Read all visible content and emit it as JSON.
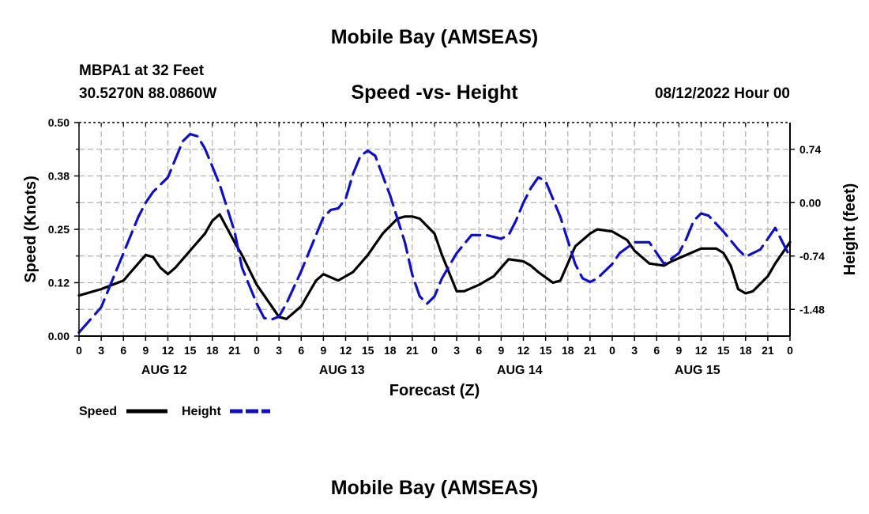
{
  "chart_data": {
    "type": "line",
    "title": "Mobile Bay (AMSEAS)",
    "footer_title": "Mobile Bay (AMSEAS)",
    "station": "MBPA1 at 32 Feet",
    "location": "30.5270N  88.0860W",
    "subtitle": "Speed -vs- Height",
    "datetime": "08/12/2022 Hour 00",
    "xlabel": "Forecast (Z)",
    "ylabel_left": "Speed (Knots)",
    "ylabel_right": "Height (feet)",
    "x_hours_range": [
      0,
      96
    ],
    "x_tick_labels": [
      "0",
      "3",
      "6",
      "9",
      "12",
      "15",
      "18",
      "21",
      "0",
      "3",
      "6",
      "9",
      "12",
      "15",
      "18",
      "21",
      "0",
      "3",
      "6",
      "9",
      "12",
      "15",
      "18",
      "21",
      "0",
      "3",
      "6",
      "9",
      "12",
      "15",
      "18",
      "21",
      "0"
    ],
    "day_labels": [
      "AUG 12",
      "AUG 13",
      "AUG 14",
      "AUG 15"
    ],
    "ylim_left": [
      0,
      0.5
    ],
    "yticks_left": [
      "0.00",
      "0.12",
      "0.25",
      "0.38",
      "0.50"
    ],
    "ylim_right": [
      -1.85,
      1.11
    ],
    "yticks_right": [
      {
        "label": "0.74",
        "value": 0.74
      },
      {
        "label": "0.00",
        "value": 0.0
      },
      {
        "label": "-0.74",
        "value": -0.74
      },
      {
        "label": "-1.48",
        "value": -1.48
      }
    ],
    "grid": true,
    "legend": [
      "Speed",
      "Height"
    ],
    "series": [
      {
        "name": "Speed",
        "axis": "left",
        "color": "#000000",
        "style": "solid",
        "x": [
          0,
          3,
          6,
          7,
          9,
          10,
          11,
          12,
          13,
          15,
          17,
          18,
          19,
          21,
          22,
          24,
          26,
          27,
          28,
          30,
          31,
          32,
          33,
          35,
          37,
          39,
          41,
          43,
          44,
          45,
          46,
          48,
          49,
          51,
          52,
          54,
          56,
          57,
          58,
          60,
          61,
          62,
          64,
          65,
          67,
          69,
          70,
          72,
          74,
          75,
          77,
          79,
          80,
          82,
          84,
          86,
          87,
          88,
          89,
          90,
          91,
          93,
          94,
          96
        ],
        "values": [
          0.095,
          0.11,
          0.13,
          0.15,
          0.19,
          0.185,
          0.16,
          0.145,
          0.16,
          0.2,
          0.24,
          0.27,
          0.285,
          0.22,
          0.19,
          0.12,
          0.07,
          0.045,
          0.04,
          0.07,
          0.1,
          0.13,
          0.145,
          0.13,
          0.15,
          0.19,
          0.24,
          0.275,
          0.28,
          0.28,
          0.275,
          0.24,
          0.19,
          0.105,
          0.105,
          0.12,
          0.14,
          0.16,
          0.18,
          0.175,
          0.165,
          0.15,
          0.125,
          0.13,
          0.21,
          0.24,
          0.25,
          0.245,
          0.225,
          0.2,
          0.17,
          0.165,
          0.175,
          0.19,
          0.205,
          0.205,
          0.195,
          0.165,
          0.11,
          0.1,
          0.105,
          0.14,
          0.17,
          0.22
        ]
      },
      {
        "name": "Height",
        "axis": "right",
        "color": "#1010c0",
        "style": "dashed",
        "x": [
          0,
          3,
          6,
          8,
          9,
          10,
          12,
          13,
          14,
          15,
          16,
          17,
          18,
          19,
          21,
          22,
          24,
          25,
          26,
          27,
          28,
          30,
          32,
          33,
          34,
          35,
          36,
          37,
          38,
          39,
          40,
          42,
          44,
          45,
          46,
          47,
          48,
          49,
          51,
          53,
          55,
          57,
          58,
          59,
          60,
          61,
          62,
          63,
          64,
          65,
          67,
          68,
          69,
          70,
          71,
          72,
          73,
          75,
          77,
          78,
          79,
          81,
          82,
          83,
          84,
          85,
          87,
          89,
          90,
          92,
          93,
          94,
          96
        ],
        "values": [
          -1.8,
          -1.45,
          -0.7,
          -0.2,
          0.0,
          0.15,
          0.35,
          0.6,
          0.85,
          0.95,
          0.92,
          0.75,
          0.5,
          0.25,
          -0.4,
          -0.9,
          -1.4,
          -1.6,
          -1.62,
          -1.58,
          -1.4,
          -0.95,
          -0.45,
          -0.2,
          -0.1,
          -0.08,
          0.05,
          0.4,
          0.65,
          0.72,
          0.65,
          0.1,
          -0.55,
          -1.0,
          -1.3,
          -1.4,
          -1.3,
          -1.05,
          -0.7,
          -0.45,
          -0.45,
          -0.5,
          -0.45,
          -0.25,
          0.0,
          0.2,
          0.35,
          0.3,
          0.05,
          -0.2,
          -0.85,
          -1.05,
          -1.1,
          -1.05,
          -0.95,
          -0.85,
          -0.7,
          -0.55,
          -0.55,
          -0.7,
          -0.85,
          -0.7,
          -0.5,
          -0.25,
          -0.15,
          -0.18,
          -0.4,
          -0.65,
          -0.75,
          -0.65,
          -0.5,
          -0.35,
          -0.75
        ]
      }
    ]
  }
}
